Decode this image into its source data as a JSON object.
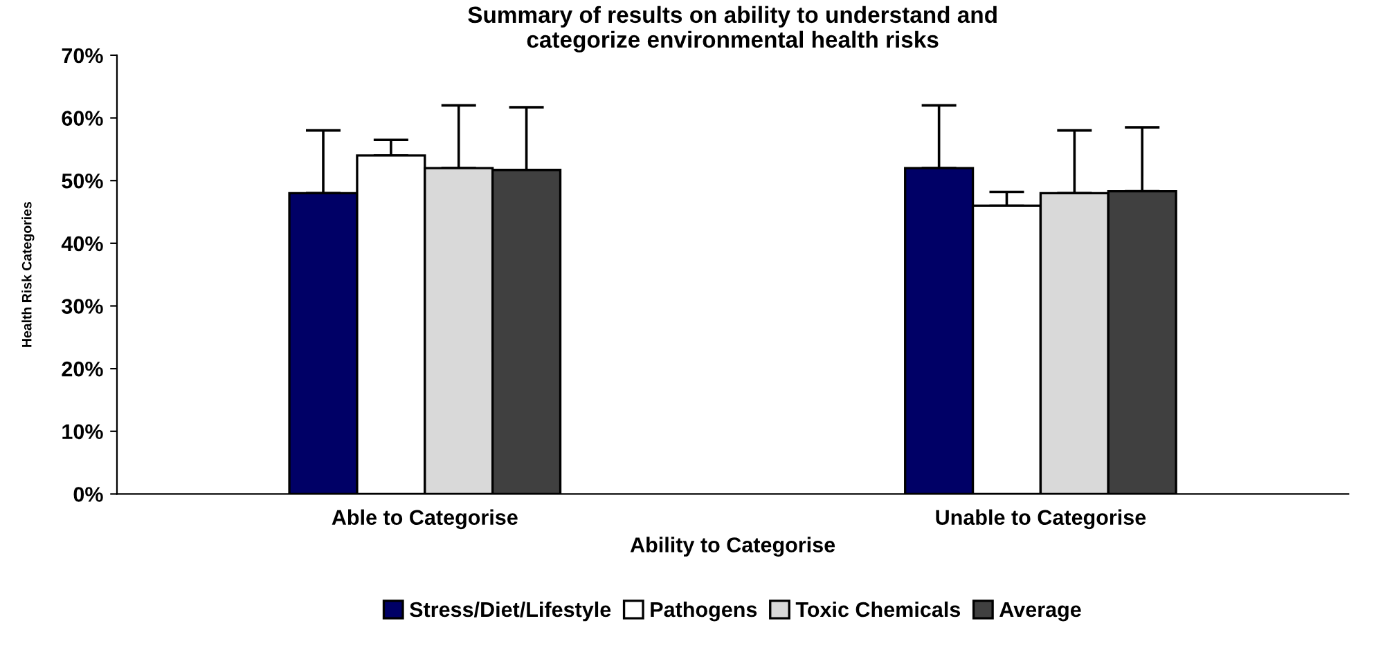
{
  "chart_data": {
    "type": "bar",
    "title": "Summary of results on ability to understand and\ncategorize environmental health risks",
    "xlabel": "Ability to Categorise",
    "ylabel": "Health Risk Categories",
    "categories": [
      "Able to Categorise",
      "Unable to Categorise"
    ],
    "series": [
      {
        "name": "Stress/Diet/Lifestyle",
        "color": "#000066",
        "values": [
          0.48,
          0.52
        ],
        "errors": [
          [
            0.48,
            0.58
          ],
          [
            0.52,
            0.62
          ]
        ]
      },
      {
        "name": "Pathogens",
        "color": "#ffffff",
        "values": [
          0.54,
          0.46
        ],
        "errors": [
          [
            0.54,
            0.565
          ],
          [
            0.46,
            0.482
          ]
        ]
      },
      {
        "name": "Toxic Chemicals",
        "color": "#d9d9d9",
        "values": [
          0.52,
          0.48
        ],
        "errors": [
          [
            0.52,
            0.62
          ],
          [
            0.48,
            0.58
          ]
        ]
      },
      {
        "name": "Average",
        "color": "#404040",
        "values": [
          0.517,
          0.483
        ],
        "errors": [
          [
            0.517,
            0.617
          ],
          [
            0.483,
            0.585
          ]
        ]
      }
    ],
    "ylim": [
      0,
      0.7
    ],
    "yticks": [
      {
        "value": 0,
        "label": "0%"
      },
      {
        "value": 0.1,
        "label": "10%"
      },
      {
        "value": 0.2,
        "label": "20%"
      },
      {
        "value": 0.3,
        "label": "30%"
      },
      {
        "value": 0.4,
        "label": "40%"
      },
      {
        "value": 0.5,
        "label": "50%"
      },
      {
        "value": 0.6,
        "label": "60%"
      },
      {
        "value": 0.7,
        "label": "70%"
      }
    ],
    "legend": "bottom",
    "grid": false
  }
}
